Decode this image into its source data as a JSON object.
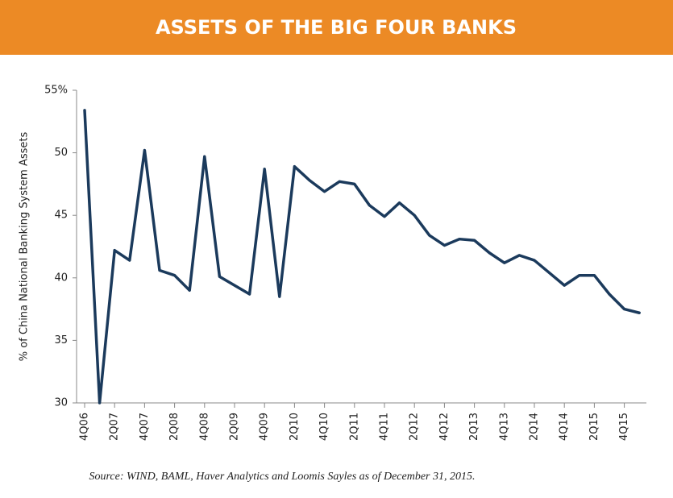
{
  "chart_data": {
    "type": "line",
    "title": "ASSETS OF THE BIG FOUR BANKS",
    "y_label": "% of China National Banking System Assets",
    "source": "Source: WIND, BAML, Haver Analytics and Loomis Sayles as of December 31, 2015.",
    "categories": [
      "4Q06",
      null,
      "2Q07",
      null,
      "4Q07",
      null,
      "2Q08",
      null,
      "4Q08",
      null,
      "2Q09",
      null,
      "4Q09",
      null,
      "2Q10",
      null,
      "4Q10",
      null,
      "2Q11",
      null,
      "4Q11",
      null,
      "2Q12",
      null,
      "4Q12",
      null,
      "2Q13",
      null,
      "4Q13",
      null,
      "2Q14",
      null,
      "4Q14",
      null,
      "2Q15",
      null,
      "4Q15",
      null
    ],
    "series": [
      {
        "color": "#1b3a5c",
        "values": [
          53.4,
          30,
          42.2,
          41.4,
          50.2,
          40.6,
          40.2,
          39.0,
          49.7,
          40.1,
          39.4,
          38.7,
          48.7,
          38.5,
          48.9,
          47.8,
          46.9,
          47.7,
          47.5,
          45.8,
          44.9,
          46.0,
          45.0,
          43.4,
          42.6,
          43.1,
          43.0,
          42.0,
          41.2,
          41.8,
          41.4,
          40.4,
          39.4,
          40.2,
          40.2,
          38.7,
          37.5,
          37.2
        ]
      }
    ],
    "ylim": [
      30,
      55
    ],
    "yticks": [
      {
        "value": 55,
        "label": "55%"
      },
      50,
      45,
      40,
      35,
      30
    ],
    "header_color": "#ec8a25"
  }
}
